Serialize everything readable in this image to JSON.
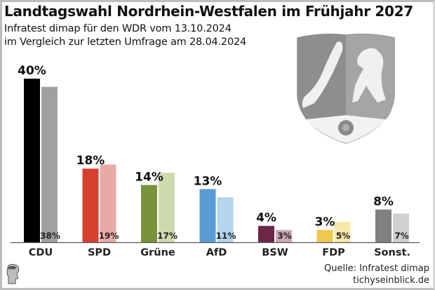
{
  "chart_data": {
    "type": "bar",
    "title": "Landtagswahl Nordrhein-Westfalen im Frühjahr 2027",
    "subtitle_lines": [
      "Infratest dimap für den WDR vom 13.10.2024",
      "im Vergleich zur letzten Umfrage am 28.04.2024"
    ],
    "categories": [
      "CDU",
      "SPD",
      "Grüne",
      "AfD",
      "BSW",
      "FDP",
      "Sonst."
    ],
    "series": [
      {
        "name": "Umfrage 13.10.2024",
        "values": [
          40,
          18,
          14,
          13,
          4,
          3,
          8
        ],
        "labels": [
          "40%",
          "18%",
          "14%",
          "13%",
          "4%",
          "3%",
          "8%"
        ],
        "colors": [
          "#000000",
          "#d6402f",
          "#78933b",
          "#5b9bd5",
          "#6b2648",
          "#f1c84f",
          "#808080"
        ]
      },
      {
        "name": "Umfrage 28.04.2024",
        "values": [
          38,
          19,
          17,
          11,
          3,
          5,
          7
        ],
        "labels": [
          "38%",
          "19%",
          "17%",
          "11%",
          "3%",
          "5%",
          "7%"
        ],
        "colors": [
          "#a0a0a0",
          "#e9a9a7",
          "#cfd9ae",
          "#b3d5ee",
          "#c9a8b7",
          "#f8e9a9",
          "#d0d0d0"
        ]
      }
    ],
    "ylim": [
      0,
      40
    ],
    "xlabel": "",
    "ylabel": "",
    "grid": false,
    "legend": "none"
  },
  "footer": {
    "source": "Quelle: Infratest dimap",
    "site": "tichyseinblick.de"
  },
  "decor": {
    "crest": "nrw-coat-of-arms",
    "logo": "tichys-einblick-logo"
  }
}
